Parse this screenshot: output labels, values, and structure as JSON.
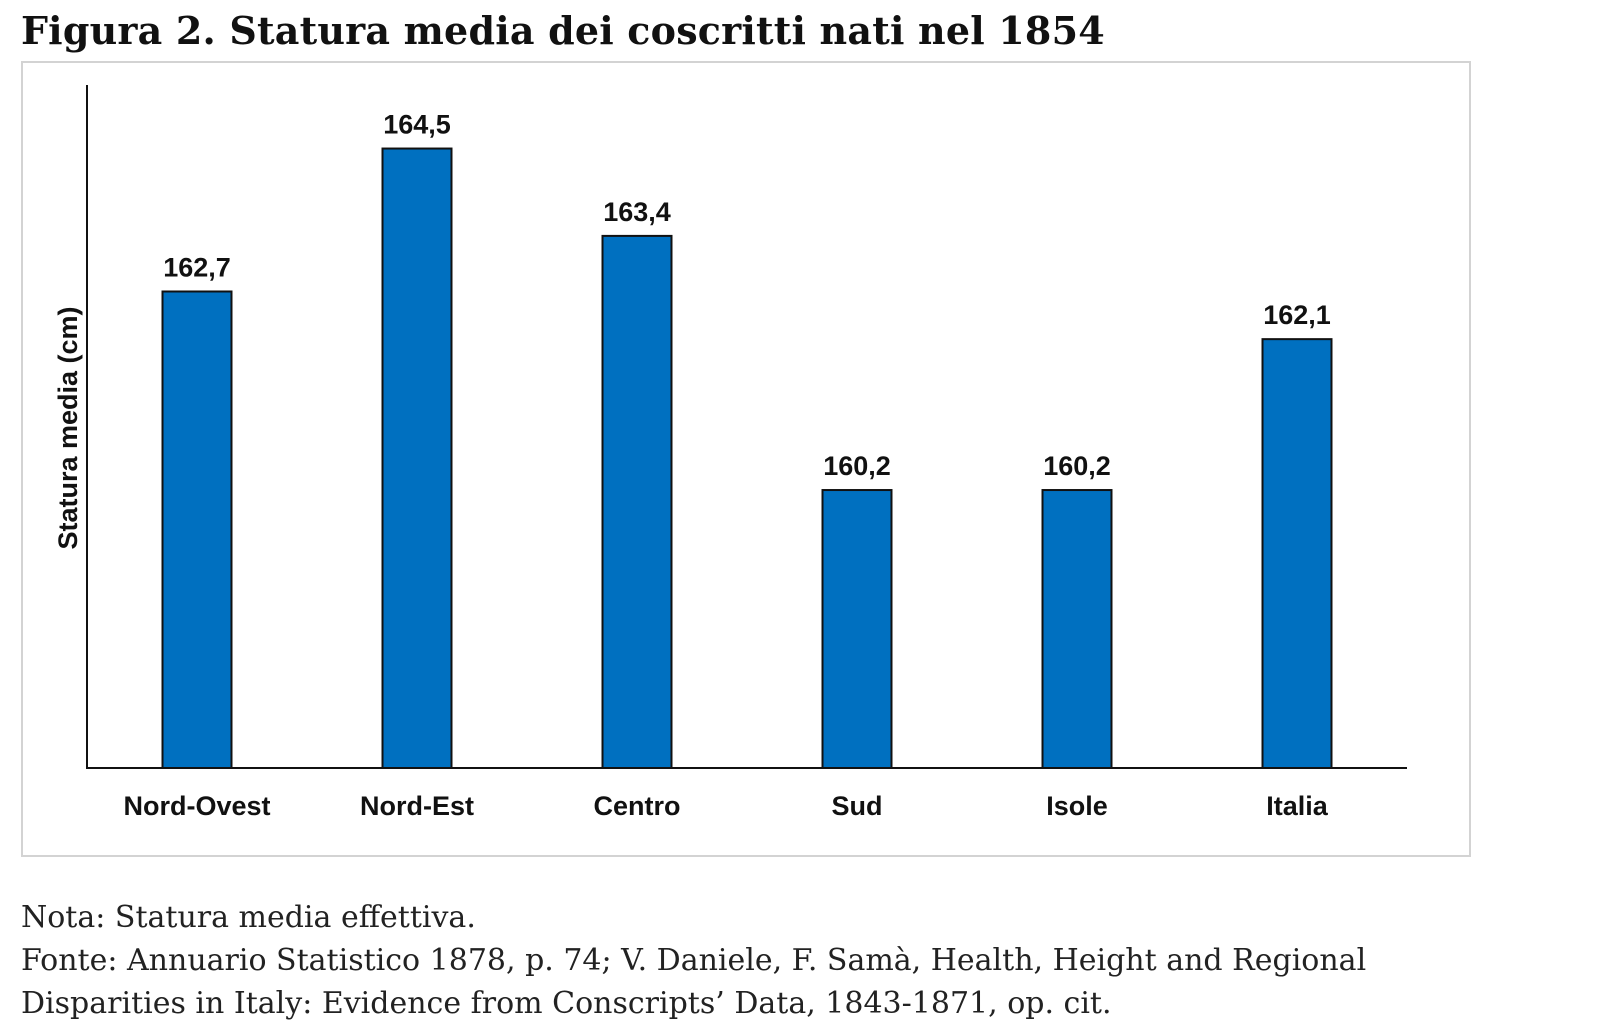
{
  "figure": {
    "title": "Figura 2. Statura media dei coscritti nati nel 1854"
  },
  "chart_data": {
    "type": "bar",
    "categories": [
      "Nord-Ovest",
      "Nord-Est",
      "Centro",
      "Sud",
      "Isole",
      "Italia"
    ],
    "values": [
      162.7,
      164.5,
      163.4,
      160.2,
      160.2,
      162.1
    ],
    "data_labels": [
      "162,7",
      "164,5",
      "163,4",
      "160,2",
      "160,2",
      "162,1"
    ],
    "title": "",
    "xlabel": "",
    "ylabel": "Statura media (cm)",
    "ylim": [
      156.7,
      165.3
    ],
    "grid": false,
    "legend": "none",
    "bar_color": "#0070C0"
  },
  "notes": {
    "nota": "Nota: Statura media effettiva.",
    "fonte_line1": "Fonte: Annuario Statistico 1878, p. 74; V. Daniele, F. Samà, Health, Height and Regional",
    "fonte_line2": "Disparities in Italy: Evidence from Conscripts’ Data, 1843-1871, op. cit."
  }
}
